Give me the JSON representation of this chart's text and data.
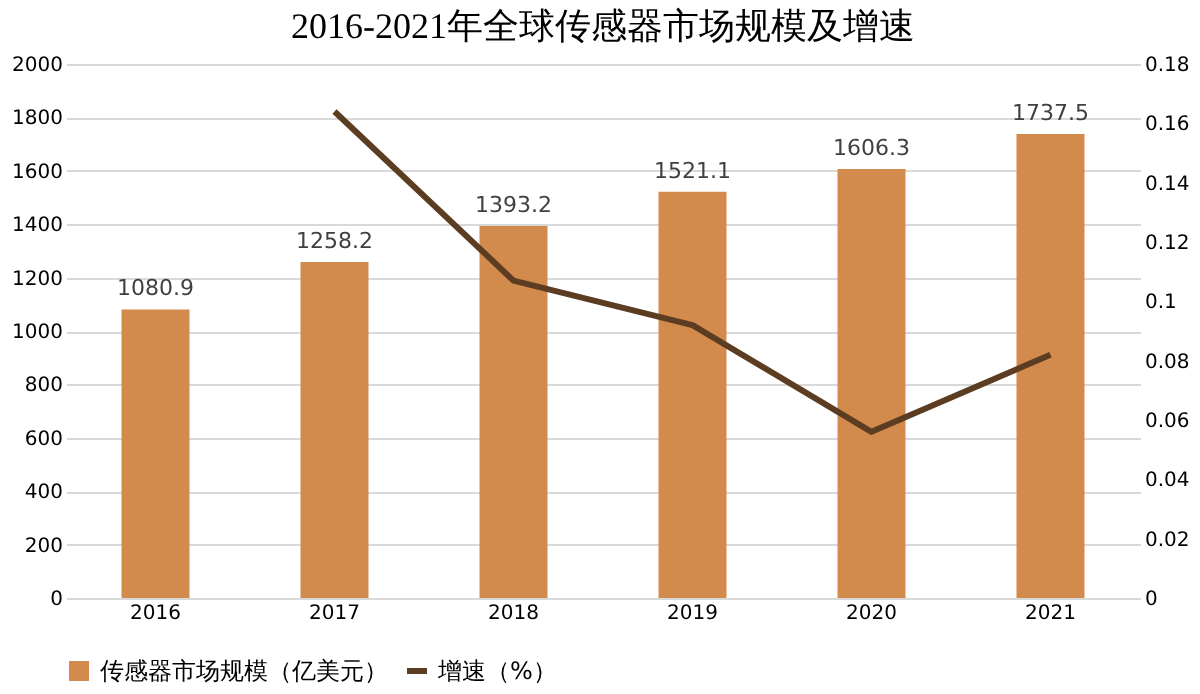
{
  "chart_data": {
    "type": "bar",
    "title": "2016-2021年全球传感器市场规模及增速",
    "categories": [
      "2016",
      "2017",
      "2018",
      "2019",
      "2020",
      "2021"
    ],
    "series": [
      {
        "name": "传感器市场规模（亿美元）",
        "color": "#d38b4d",
        "values": [
          1080.9,
          1258.2,
          1393.2,
          1521.1,
          1606.3,
          1737.5
        ],
        "value_labels": [
          "1080.9",
          "1258.2",
          "1393.2",
          "1521.1",
          "1606.3",
          "1737.5"
        ]
      },
      {
        "name": "增速（%）",
        "type": "line",
        "axis": "y2",
        "color": "#5c3d22",
        "values": [
          null,
          0.164,
          0.107,
          0.092,
          0.056,
          0.082
        ]
      }
    ],
    "ylim": [
      0,
      2000
    ],
    "yticks": [
      0,
      200,
      400,
      600,
      800,
      1000,
      1200,
      1400,
      1600,
      1800,
      2000
    ],
    "y2lim": [
      0,
      0.18
    ],
    "y2ticks": [
      0,
      0.02,
      0.04,
      0.06,
      0.08,
      0.1,
      0.12,
      0.14,
      0.16,
      0.18
    ],
    "grid": "y",
    "legend": "bottom",
    "marker": "none",
    "line_style": "solid"
  }
}
